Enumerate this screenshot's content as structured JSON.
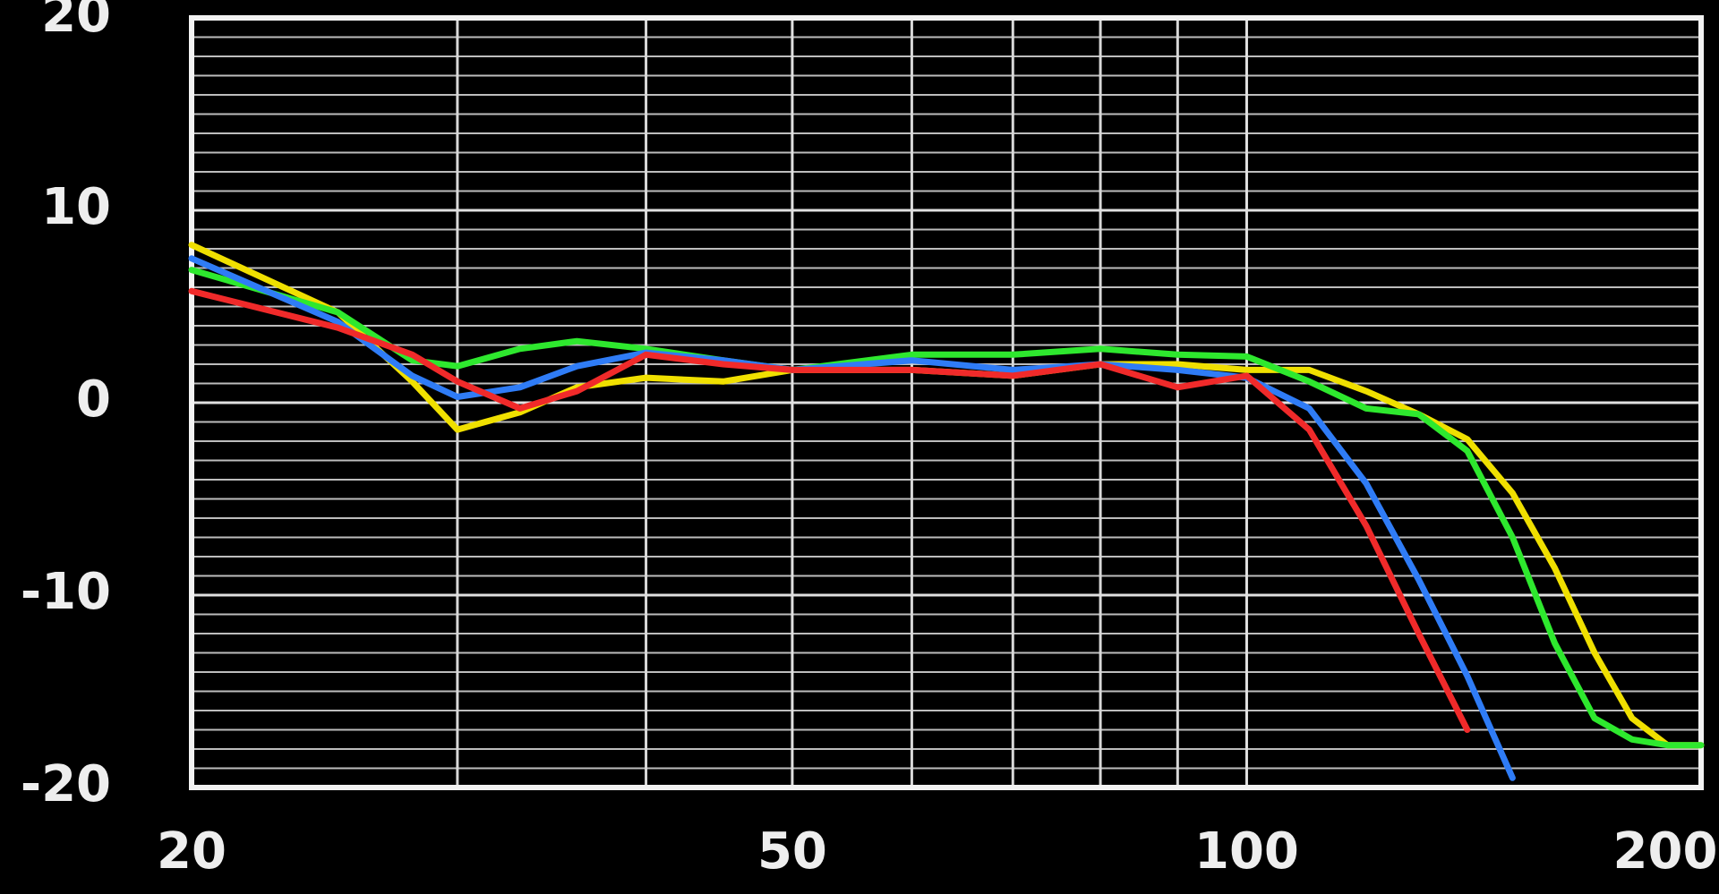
{
  "chart_data": {
    "type": "line",
    "x": [
      20,
      25,
      28,
      30,
      33,
      36,
      40,
      45,
      50,
      60,
      70,
      80,
      90,
      100,
      110,
      120,
      130,
      140,
      150,
      160,
      170,
      180,
      190,
      200
    ],
    "series": [
      {
        "color": "#f0e000",
        "values": [
          8.2,
          4.7,
          1.1,
          -1.4,
          -0.5,
          0.8,
          1.3,
          1.1,
          1.7,
          1.7,
          1.4,
          2,
          2,
          1.7,
          1.7,
          0.6,
          -0.6,
          -1.9,
          -4.7,
          -8.6,
          -13,
          -16.4,
          -17.8,
          -17.8
        ]
      },
      {
        "color": "#2ee82e",
        "values": [
          6.9,
          4.7,
          2.2,
          1.9,
          2.8,
          3.2,
          2.8,
          2.2,
          1.7,
          2.5,
          2.5,
          2.8,
          2.5,
          2.4,
          1.1,
          -0.3,
          -0.6,
          -2.5,
          -7,
          -12.5,
          -16.4,
          -17.5,
          -17.8,
          -17.8
        ]
      },
      {
        "color": "#2f7cf6",
        "values": [
          7.5,
          4.2,
          1.4,
          0.3,
          0.8,
          1.9,
          2.6,
          2.2,
          1.7,
          2.2,
          1.7,
          2,
          1.7,
          1.3,
          -0.3,
          -4.2,
          -9.2,
          -14.2,
          -19.5,
          null,
          null,
          null,
          null,
          null
        ]
      },
      {
        "color": "#f02a2a",
        "values": [
          5.8,
          3.9,
          2.5,
          1.1,
          -0.3,
          0.6,
          2.5,
          2.0,
          1.7,
          1.7,
          1.4,
          2,
          0.8,
          1.4,
          -1.4,
          -6.4,
          -12,
          -17,
          null,
          null,
          null,
          null,
          null,
          null
        ]
      }
    ],
    "xlim": [
      20,
      200
    ],
    "xticks": [
      20,
      50,
      100,
      200
    ],
    "x_minor_ticks": [
      30,
      40,
      60,
      70,
      80,
      90
    ],
    "x_log": true,
    "ylim": [
      -20,
      20
    ],
    "yticks": [
      -20,
      -10,
      0,
      10,
      20
    ],
    "grid": true,
    "minor_grid": true
  }
}
